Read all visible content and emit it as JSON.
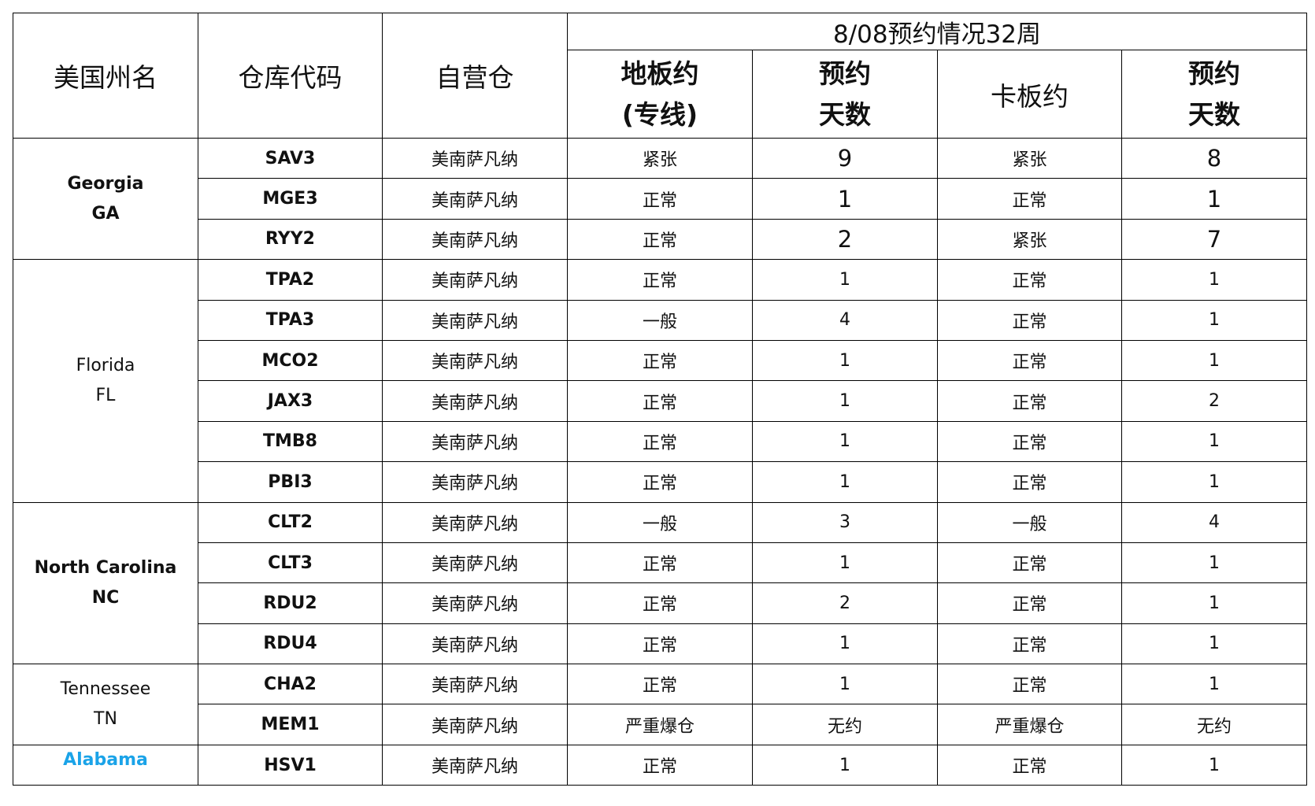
{
  "header": {
    "state": "美国州名",
    "code": "仓库代码",
    "warehouse": "自营仓",
    "group": "8/08预约情况32周",
    "floor": "地板约\n(专线)",
    "floor_days": "预约\n天数",
    "pallet": "卡板约",
    "pallet_days": "预约\n天数"
  },
  "groups": [
    {
      "state": "Georgia\nGA",
      "rows": [
        [
          "SAV3",
          "美南萨凡纳",
          "紧张",
          9,
          "紧张",
          8
        ],
        [
          "MGE3",
          "美南萨凡纳",
          "正常",
          1,
          "正常",
          1
        ],
        [
          "RYY2",
          "美南萨凡纳",
          "正常",
          2,
          "紧张",
          7
        ]
      ]
    },
    {
      "state": "Florida\nFL",
      "rows": [
        [
          "TPA2",
          "美南萨凡纳",
          "正常",
          1,
          "正常",
          1
        ],
        [
          "TPA3",
          "美南萨凡纳",
          "一般",
          4,
          "正常",
          1
        ],
        [
          "MCO2",
          "美南萨凡纳",
          "正常",
          1,
          "正常",
          1
        ],
        [
          "JAX3",
          "美南萨凡纳",
          "正常",
          1,
          "正常",
          2
        ],
        [
          "TMB8",
          "美南萨凡纳",
          "正常",
          1,
          "正常",
          1
        ],
        [
          "PBI3",
          "美南萨凡纳",
          "正常",
          1,
          "正常",
          1
        ]
      ]
    },
    {
      "state": "North Carolina\nNC",
      "rows": [
        [
          "CLT2",
          "美南萨凡纳",
          "一般",
          3,
          "一般",
          4
        ],
        [
          "CLT3",
          "美南萨凡纳",
          "正常",
          1,
          "正常",
          1
        ],
        [
          "RDU2",
          "美南萨凡纳",
          "正常",
          2,
          "正常",
          1
        ],
        [
          "RDU4",
          "美南萨凡纳",
          "正常",
          1,
          "正常",
          1
        ]
      ]
    },
    {
      "state": "Tennessee\nTN",
      "rows": [
        [
          "CHA2",
          "美南萨凡纳",
          "正常",
          1,
          "正常",
          1
        ],
        [
          "MEM1",
          "美南萨凡纳",
          "严重爆仓",
          "无约",
          "严重爆仓",
          "无约"
        ]
      ]
    },
    {
      "state": "Alabama",
      "rows": [
        [
          "HSV1",
          "美南萨凡纳",
          "正常",
          1,
          "正常",
          1
        ]
      ]
    }
  ]
}
